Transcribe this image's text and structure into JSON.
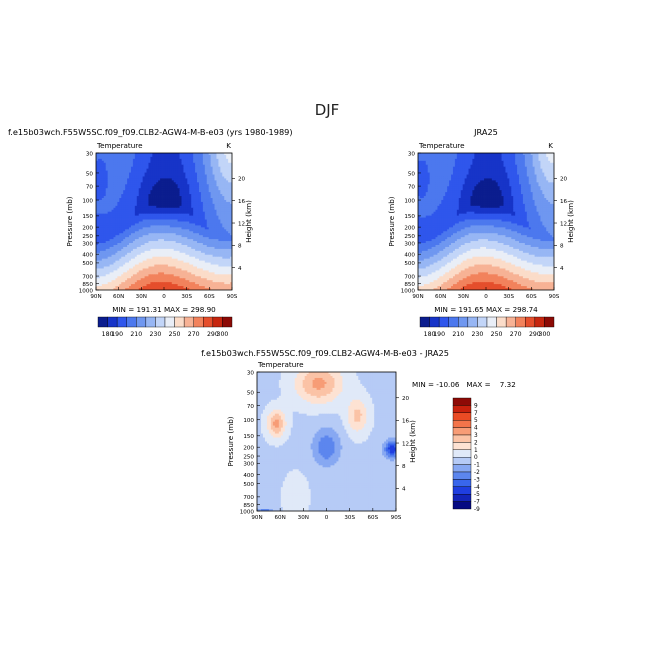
{
  "page": {
    "title": "DJF"
  },
  "panels": [
    {
      "title": "f.e15b03wch.F55W5SC.f09_f09.CLB2-AGW4-M-B-e03 (yrs 1980-1989)",
      "variable": "Temperature",
      "units": "K",
      "stats": "MIN = 191.31    MAX = 298.90"
    },
    {
      "title": "JRA25",
      "variable": "Temperature",
      "units": "K",
      "stats": "MIN = 191.65    MAX = 298.74"
    },
    {
      "title": "f.e15b03wch.F55W5SC.f09_f09.CLB2-AGW4-M-B-e03 - JRA25",
      "variable": "Temperature",
      "units": "",
      "stats": "MIN = -10.06   MAX =    7.32"
    }
  ],
  "chart_data": [
    {
      "type": "contour",
      "xlabel": "",
      "ylabel": "Pressure (mb)",
      "y2label": "Height (km)",
      "x_ticks": [
        "90N",
        "60N",
        "30N",
        "0",
        "30S",
        "60S",
        "90S"
      ],
      "y_ticks": [
        "30",
        "50",
        "70",
        "100",
        "150",
        "200",
        "250",
        "300",
        "400",
        "500",
        "700",
        "850",
        "1000"
      ],
      "y2_ticks": [
        "20",
        "16",
        "12",
        "8",
        "4"
      ],
      "ylim": [
        1000,
        30
      ],
      "y_scale": "log",
      "min": 191.31,
      "max": 298.9,
      "contour_levels": [
        180,
        190,
        200,
        210,
        220,
        230,
        240,
        250,
        260,
        270,
        280,
        290,
        300
      ],
      "colorbar_labels": [
        "180",
        "190",
        "210",
        "230",
        "250",
        "270",
        "290",
        "300"
      ]
    },
    {
      "type": "contour",
      "xlabel": "",
      "ylabel": "Pressure (mb)",
      "y2label": "Height (km)",
      "x_ticks": [
        "90N",
        "60N",
        "30N",
        "0",
        "30S",
        "60S",
        "90S"
      ],
      "y_ticks": [
        "30",
        "50",
        "70",
        "100",
        "150",
        "200",
        "250",
        "300",
        "400",
        "500",
        "700",
        "850",
        "1000"
      ],
      "y2_ticks": [
        "20",
        "16",
        "12",
        "8",
        "4"
      ],
      "ylim": [
        1000,
        30
      ],
      "y_scale": "log",
      "min": 191.65,
      "max": 298.74,
      "contour_levels": [
        180,
        190,
        200,
        210,
        220,
        230,
        240,
        250,
        260,
        270,
        280,
        290,
        300
      ],
      "colorbar_labels": [
        "180",
        "190",
        "210",
        "230",
        "250",
        "270",
        "290",
        "300"
      ]
    },
    {
      "type": "contour",
      "xlabel": "",
      "ylabel": "Pressure (mb)",
      "y2label": "Height (km)",
      "x_ticks": [
        "90N",
        "60N",
        "30N",
        "0",
        "30S",
        "60S",
        "90S"
      ],
      "y_ticks": [
        "30",
        "50",
        "70",
        "100",
        "150",
        "200",
        "250",
        "300",
        "400",
        "500",
        "700",
        "850",
        "1000"
      ],
      "y2_ticks": [
        "20",
        "16",
        "12",
        "8",
        "4"
      ],
      "ylim": [
        1000,
        30
      ],
      "y_scale": "log",
      "min": -10.06,
      "max": 7.32,
      "contour_levels": [
        -9,
        -7,
        -5,
        -4,
        -3,
        -2,
        -1,
        0,
        1,
        2,
        3,
        4,
        5,
        7,
        9
      ],
      "colorbar_labels": [
        "9",
        "7",
        "5",
        "4",
        "3",
        "2",
        "1",
        "0",
        "-1",
        "-2",
        "-3",
        "-4",
        "-5",
        "-7",
        "-9"
      ]
    }
  ],
  "colors": {
    "abs_palette": [
      "#0b1d8e",
      "#1734c8",
      "#2f56ec",
      "#4c78ee",
      "#6f97f0",
      "#97b6f4",
      "#c2d5f8",
      "#e9eef7",
      "#fbdcc9",
      "#f7b295",
      "#f2825c",
      "#e54e2c",
      "#c6260f",
      "#8c0a05"
    ],
    "diff_palette": [
      "#050a82",
      "#1324b8",
      "#1f3ee0",
      "#3966ec",
      "#5c86ee",
      "#87a8f2",
      "#b6cbf6",
      "#e0e9f8",
      "#fde2d3",
      "#fbc3a6",
      "#f79c76",
      "#f3744a",
      "#ea4b24",
      "#c8210d",
      "#8e0a06"
    ]
  }
}
